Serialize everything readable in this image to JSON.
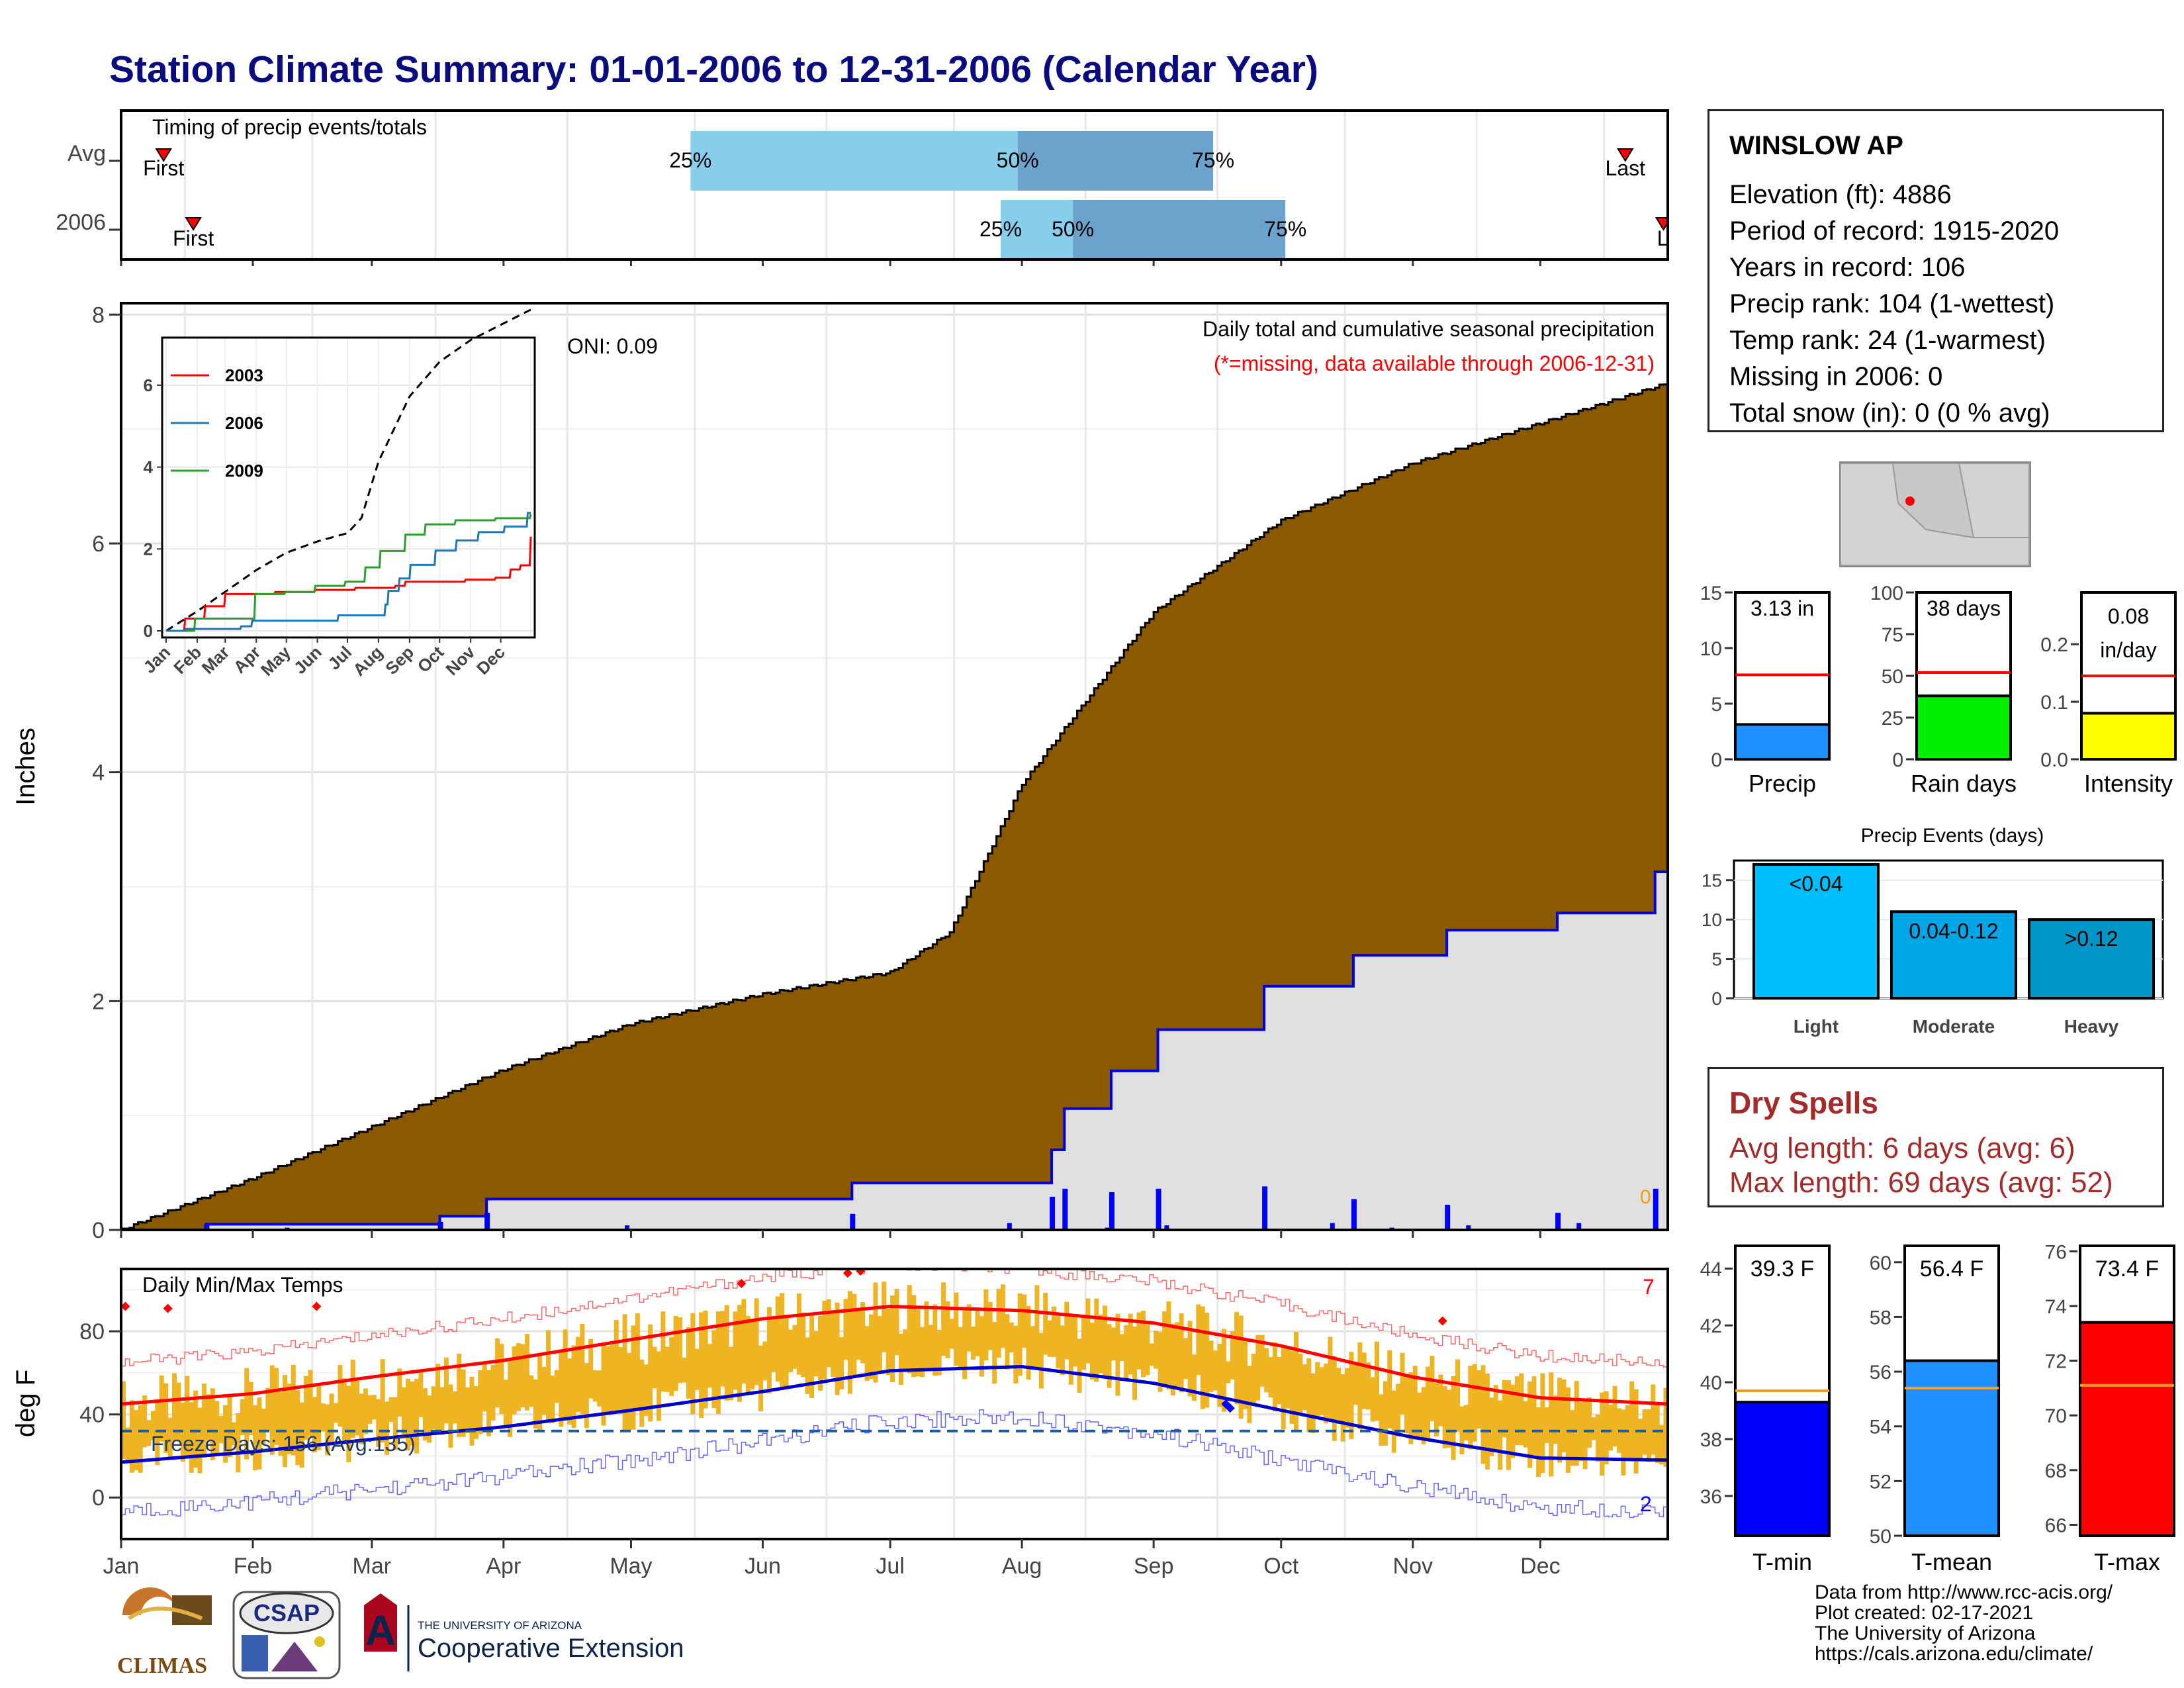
{
  "title": "Station Climate Summary: 01-01-2006 to 12-31-2006 (Calendar Year)",
  "timing_panel": {
    "label": "Timing of precip events/totals",
    "row_labels": [
      "Avg",
      "2006"
    ],
    "first_label": "First",
    "last_label": "Last",
    "last_label_clipped": "La",
    "avg": {
      "first_doy": 11,
      "p25_doy": 135,
      "p50_doy": 212,
      "p75_doy": 258,
      "last_doy": 355
    },
    "y2006": {
      "first_doy": 18,
      "p25_doy": 208,
      "p50_doy": 225,
      "p75_doy": 275,
      "last_doy": 364
    },
    "pct_labels": [
      "25%",
      "50%",
      "75%"
    ]
  },
  "precip_panel": {
    "ylabel": "Inches",
    "note1": "Daily total and cumulative seasonal precipitation",
    "note2": "(*=missing, data available through 2006-12-31)",
    "oni_label": "ONI: 0.09",
    "zero_marker": "0",
    "yticks": [
      "0",
      "2",
      "4",
      "6",
      "8"
    ],
    "ylim": [
      0,
      8.1
    ]
  },
  "inset": {
    "legend": [
      "2003",
      "2006",
      "2009"
    ],
    "months": [
      "Jan",
      "Feb",
      "Mar",
      "Apr",
      "May",
      "Jun",
      "Jul",
      "Aug",
      "Sep",
      "Oct",
      "Nov",
      "Dec"
    ],
    "yticks": [
      "0",
      "2",
      "4",
      "6"
    ]
  },
  "temp_panel": {
    "ylabel": "deg F",
    "label": "Daily Min/Max Temps",
    "freeze_label": "Freeze Days: 156 (Avg:135)",
    "count_hot": "7",
    "count_cold": "2",
    "yticks": [
      "0",
      "40",
      "80"
    ],
    "months": [
      "Jan",
      "Feb",
      "Mar",
      "Apr",
      "May",
      "Jun",
      "Jul",
      "Aug",
      "Sep",
      "Oct",
      "Nov",
      "Dec"
    ]
  },
  "station": {
    "name": "WINSLOW AP",
    "lines": [
      "Elevation (ft): 4886",
      "Period of record: 1915-2020",
      "Years in record: 106",
      "Precip rank: 104 (1-wettest)",
      "Temp rank: 24 (1-warmest)",
      "Missing in 2006: 0",
      "Total snow (in): 0 (0 % avg)"
    ]
  },
  "summary_bars": [
    {
      "label": "Precip",
      "value_text": "3.13 in",
      "value": 3.13,
      "avg": 7.6,
      "ymax": 15,
      "ticks": [
        "0",
        "5",
        "10",
        "15"
      ],
      "color": "#1e90ff"
    },
    {
      "label": "Rain days",
      "value_text": "38 days",
      "value": 38,
      "avg": 52,
      "ymax": 100,
      "ticks": [
        "0",
        "25",
        "50",
        "75",
        "100"
      ],
      "color": "#00ee00"
    },
    {
      "label": "Intensity",
      "value_text": "0.08 in/day",
      "value_line1": "0.08",
      "value_line2": "in/day",
      "value": 0.08,
      "avg": 0.145,
      "ymax": 0.29,
      "ticks": [
        "0.0",
        "0.1",
        "0.2"
      ],
      "color": "#ffff00"
    }
  ],
  "precip_events": {
    "title": "Precip Events (days)",
    "categories": [
      "Light",
      "Moderate",
      "Heavy"
    ],
    "bar_labels": [
      "<0.04",
      "0.04-0.12",
      ">0.12"
    ],
    "values": [
      17,
      11,
      10
    ],
    "ymax": 17.5,
    "ticks": [
      "0",
      "5",
      "10",
      "15"
    ],
    "colors": [
      "#00bfff",
      "#00a6e6",
      "#0096c8"
    ]
  },
  "dry_spells": {
    "title": "Dry Spells",
    "avg_line": "Avg length: 6 days (avg: 6)",
    "max_line": "Max length: 69 days (avg: 52)"
  },
  "temp_bars": [
    {
      "label": "T-min",
      "value_text": "39.3 F",
      "value": 39.3,
      "avg": 39.7,
      "ymin": 34.6,
      "ymax": 44.8,
      "ticks": [
        "36",
        "38",
        "40",
        "42",
        "44"
      ],
      "color": "#0000ff"
    },
    {
      "label": "T-mean",
      "value_text": "56.4 F",
      "value": 56.4,
      "avg": 55.4,
      "ymin": 50,
      "ymax": 60.6,
      "ticks": [
        "50",
        "52",
        "54",
        "56",
        "58",
        "60"
      ],
      "color": "#1e90ff"
    },
    {
      "label": "T-max",
      "value_text": "73.4 F",
      "value": 73.4,
      "avg": 71.1,
      "ymin": 65.6,
      "ymax": 76.2,
      "ticks": [
        "66",
        "68",
        "70",
        "72",
        "74",
        "76"
      ],
      "color": "#ff0000"
    }
  ],
  "credits": [
    "Data from http://www.rcc-acis.org/",
    "Plot created: 02-17-2021",
    "The University of Arizona",
    "https://cals.arizona.edu/climate/"
  ],
  "logos": {
    "climas": "CLIMAS",
    "csap": "CSAP",
    "ua_small": "THE UNIVERSITY OF ARIZONA",
    "coop": "Cooperative Extension"
  },
  "chart_data": [
    {
      "type": "area",
      "title": "Daily total and cumulative seasonal precipitation",
      "ylabel": "Inches",
      "ylim": [
        0,
        8.1
      ],
      "series": [
        {
          "name": "Avg cumulative",
          "x_doy": [
            1,
            32,
            60,
            91,
            121,
            152,
            182,
            196,
            213,
            244,
            274,
            305,
            335,
            365
          ],
          "values": [
            0,
            0.45,
            0.9,
            1.4,
            1.8,
            2.06,
            2.25,
            2.6,
            3.9,
            5.4,
            6.2,
            6.7,
            7.05,
            7.4
          ]
        },
        {
          "name": "2006 cumulative",
          "x_doy": [
            1,
            20,
            21,
            75,
            76,
            86,
            87,
            172,
            173,
            219,
            220,
            222,
            223,
            233,
            234,
            244,
            245,
            269,
            270,
            290,
            291,
            312,
            313,
            338,
            339,
            361,
            362,
            365
          ],
          "values": [
            0,
            0,
            0.05,
            0.05,
            0.12,
            0.12,
            0.27,
            0.27,
            0.41,
            0.41,
            0.7,
            0.7,
            1.06,
            1.06,
            1.39,
            1.39,
            1.75,
            1.75,
            2.13,
            2.13,
            2.4,
            2.4,
            2.62,
            2.62,
            2.77,
            2.77,
            3.13,
            3.13
          ]
        }
      ]
    },
    {
      "type": "line",
      "title": "Daily Min/Max Temps",
      "ylabel": "deg F",
      "ylim": [
        -20,
        110
      ],
      "series": [
        {
          "name": "Avg max",
          "x_doy": [
            1,
            32,
            60,
            91,
            121,
            152,
            182,
            213,
            244,
            274,
            305,
            335,
            365
          ],
          "values": [
            45,
            50,
            58,
            66,
            76,
            86,
            92,
            90,
            84,
            73,
            58,
            48,
            45
          ]
        },
        {
          "name": "Avg min",
          "x_doy": [
            1,
            32,
            60,
            91,
            121,
            152,
            182,
            213,
            244,
            274,
            305,
            335,
            365
          ],
          "values": [
            17,
            22,
            28,
            34,
            42,
            51,
            61,
            63,
            55,
            42,
            29,
            19,
            18
          ]
        }
      ]
    }
  ]
}
